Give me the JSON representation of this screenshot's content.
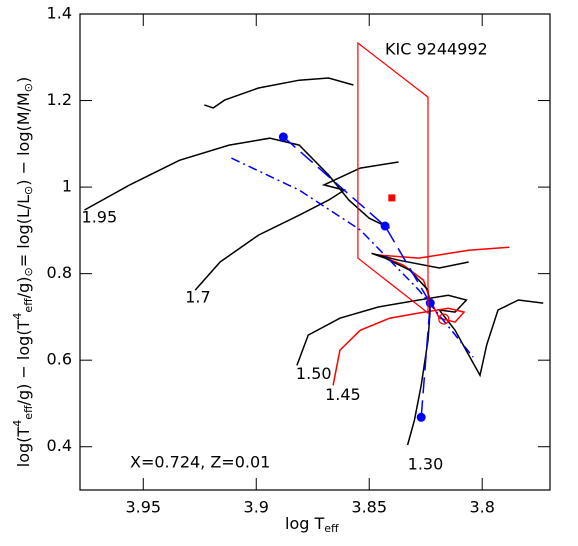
{
  "chart_data": {
    "type": "line",
    "xlabel": [
      [
        "log T",
        ""
      ],
      [
        "eff",
        "sub"
      ]
    ],
    "ylabel": [
      [
        "log(T",
        ""
      ],
      [
        "4",
        "sup"
      ],
      [
        "eff",
        "sub"
      ],
      [
        "/g) − log(T",
        ""
      ],
      [
        "4",
        "sup"
      ],
      [
        "eff",
        "sub"
      ],
      [
        "/g)",
        ""
      ],
      [
        "⊙",
        "sub"
      ],
      [
        "= log(L/L",
        ""
      ],
      [
        "⊙",
        "sub"
      ],
      [
        ") − log(M/M",
        ""
      ],
      [
        "⊙",
        "sub"
      ],
      [
        ")",
        ""
      ]
    ],
    "xlim": [
      3.978,
      3.77
    ],
    "ylim": [
      0.3,
      1.4
    ],
    "xticks": [
      3.95,
      3.9,
      3.85,
      3.8
    ],
    "yticks": [
      0.4,
      0.6,
      0.8,
      1,
      1.2,
      1.4
    ],
    "annotations": [
      {
        "text": "KIC 9244992",
        "color": "#ff0000"
      },
      {
        "text": "X=0.724, Z=0.01",
        "color": "#000000"
      }
    ],
    "series": [
      {
        "color": "#000000",
        "style": "solid",
        "x": [
          3.923,
          3.919,
          3.914,
          3.899,
          3.881,
          3.868,
          3.857
        ],
        "y": [
          1.19,
          1.183,
          1.201,
          1.229,
          1.247,
          1.252,
          1.236
        ]
      },
      {
        "name": "1.95",
        "color": "#000000",
        "style": "solid",
        "x": [
          3.976,
          3.956,
          3.934,
          3.912,
          3.894,
          3.881,
          3.868,
          3.859,
          3.85,
          3.841
        ],
        "y": [
          0.947,
          1.005,
          1.062,
          1.097,
          1.113,
          1.097,
          1.028,
          0.97,
          0.928,
          0.905
        ]
      },
      {
        "name": "1.7",
        "color": "#000000",
        "style": "solid",
        "x": [
          3.927,
          3.916,
          3.899,
          3.881,
          3.868,
          3.861,
          3.87,
          3.854,
          3.837
        ],
        "y": [
          0.762,
          0.827,
          0.889,
          0.935,
          0.97,
          0.993,
          1.005,
          1.044,
          1.058
        ]
      },
      {
        "name": "1.50",
        "color": "#000000",
        "style": "solid",
        "x": [
          3.882,
          3.877,
          3.863,
          3.846,
          3.828,
          3.815,
          3.807,
          3.812,
          3.819,
          3.812,
          3.806,
          3.801,
          3.798,
          3.793,
          3.784,
          3.773
        ],
        "y": [
          0.588,
          0.658,
          0.697,
          0.723,
          0.739,
          0.75,
          0.739,
          0.711,
          0.716,
          0.669,
          0.612,
          0.565,
          0.635,
          0.716,
          0.739,
          0.732
        ]
      },
      {
        "name": "1.45",
        "color": "#ff0000",
        "style": "solid",
        "x": [
          3.866,
          3.863,
          3.854,
          3.841,
          3.828,
          3.815,
          3.808,
          3.812,
          3.819,
          3.823,
          3.826,
          3.835,
          3.846,
          3.828,
          3.806,
          3.788
        ],
        "y": [
          0.542,
          0.623,
          0.669,
          0.697,
          0.709,
          0.72,
          0.711,
          0.688,
          0.697,
          0.739,
          0.785,
          0.82,
          0.843,
          0.836,
          0.854,
          0.861
        ]
      },
      {
        "name": "1.30",
        "color": "#000000",
        "style": "solid",
        "x": [
          3.833,
          3.83,
          3.827,
          3.824,
          3.823,
          3.824,
          3.832,
          3.843,
          3.849,
          3.837,
          3.819,
          3.806
        ],
        "y": [
          0.404,
          0.461,
          0.542,
          0.646,
          0.716,
          0.762,
          0.808,
          0.836,
          0.847,
          0.831,
          0.813,
          0.827
        ]
      },
      {
        "color": "#0000ff",
        "style": "dashed",
        "markers": true,
        "x": [
          3.888,
          3.843,
          3.823,
          3.827
        ],
        "y": [
          1.116,
          0.91,
          0.732,
          0.468
        ]
      },
      {
        "color": "#0000ff",
        "style": "dashdot",
        "x": [
          3.911,
          3.881,
          3.854,
          3.828,
          3.804
        ],
        "y": [
          1.067,
          0.993,
          0.901,
          0.762,
          0.607
        ]
      },
      {
        "color": "#ff0000",
        "style": "closed",
        "x": [
          3.855,
          3.824,
          3.824,
          3.855
        ],
        "y": [
          1.333,
          1.208,
          0.709,
          0.836
        ]
      },
      {
        "color": "#ff0000",
        "style": "square",
        "x": [
          3.84
        ],
        "y": [
          0.975
        ]
      },
      {
        "color": "#ff0000",
        "style": "open-circle",
        "x": [
          3.817
        ],
        "y": [
          0.695
        ]
      }
    ]
  }
}
